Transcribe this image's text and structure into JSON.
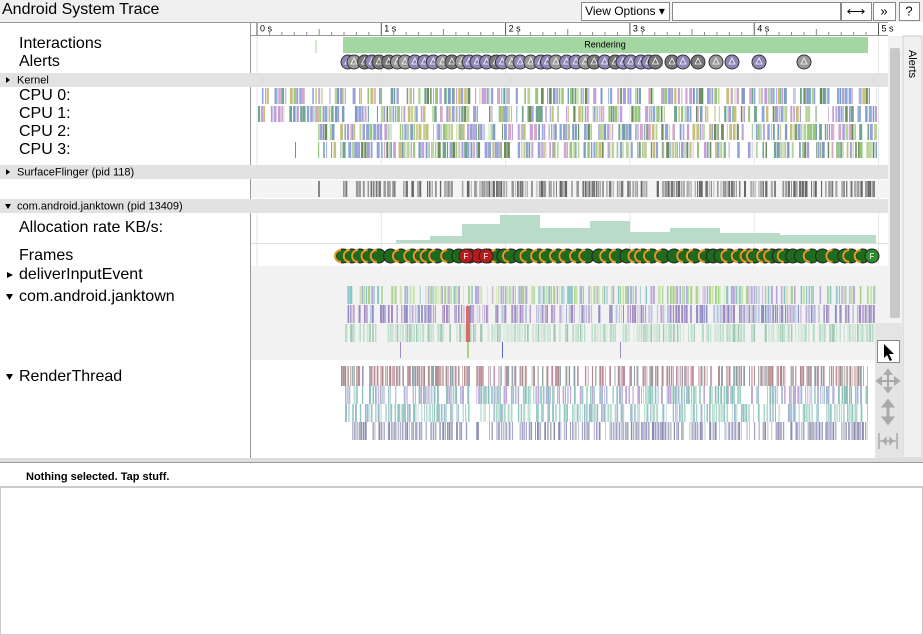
{
  "header": {
    "title": "Android System Trace",
    "view_options": "View Options ▾",
    "buttons": [
      "⟷",
      "»",
      "?"
    ]
  },
  "ruler": {
    "ticks": [
      "0 s",
      "1 s",
      "2 s",
      "3 s",
      "4 s",
      "5 s"
    ]
  },
  "tracks": {
    "interactions": {
      "label": "Interactions",
      "slice": "Rendering"
    },
    "alerts": {
      "label": "Alerts"
    },
    "kernel": {
      "label": "Kernel",
      "cpus": [
        "CPU 0:",
        "CPU 1:",
        "CPU 2:",
        "CPU 3:"
      ]
    },
    "surfaceflinger": {
      "label": "SurfaceFlinger (pid 118)"
    },
    "process": {
      "label": "com.android.janktown (pid 13409)",
      "rows": [
        "Allocation rate KB/s:",
        "Frames",
        "deliverInputEvent",
        "com.android.janktown",
        "RenderThread"
      ]
    }
  },
  "frame_marker": "F",
  "side_tab": "Alerts",
  "status": "Nothing selected. Tap stuff."
}
